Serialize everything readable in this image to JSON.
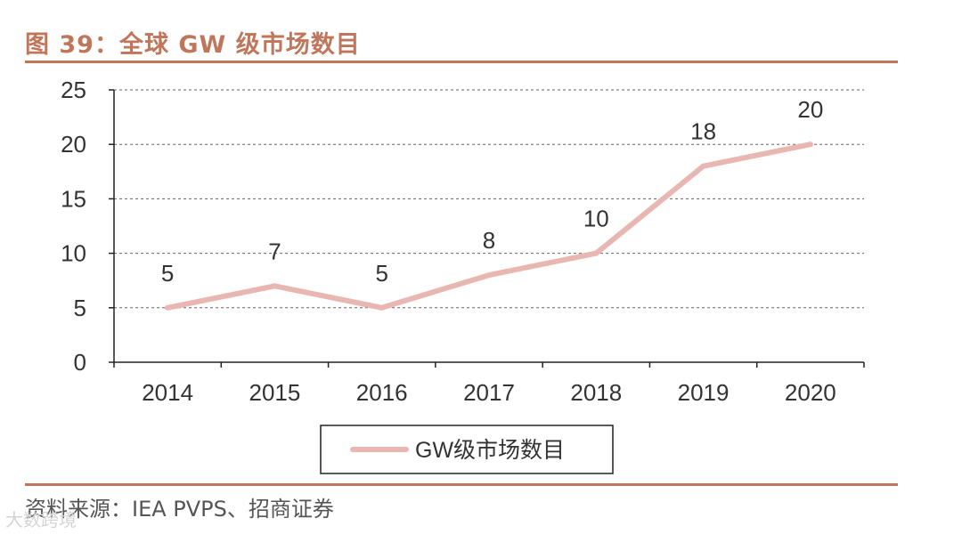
{
  "figure": {
    "title": "图 39：全球 GW 级市场数目",
    "source": "资料来源：IEA PVPS、招商证券",
    "watermark": "大数跨境"
  },
  "colors": {
    "accent": "#c0765a",
    "line": "#e8b7b2",
    "axis": "#222222",
    "grid": "#666666",
    "text": "#333333"
  },
  "chart_data": {
    "type": "line",
    "title": "图 39：全球 GW 级市场数目",
    "xlabel": "",
    "ylabel": "",
    "categories": [
      "2014",
      "2015",
      "2016",
      "2017",
      "2018",
      "2019",
      "2020"
    ],
    "series": [
      {
        "name": "GW级市场数目",
        "values": [
          5,
          7,
          5,
          8,
          10,
          18,
          20
        ]
      }
    ],
    "ylim": [
      0,
      25
    ],
    "yticks": [
      0,
      5,
      10,
      15,
      20,
      25
    ],
    "grid": true,
    "legend_position": "bottom"
  }
}
